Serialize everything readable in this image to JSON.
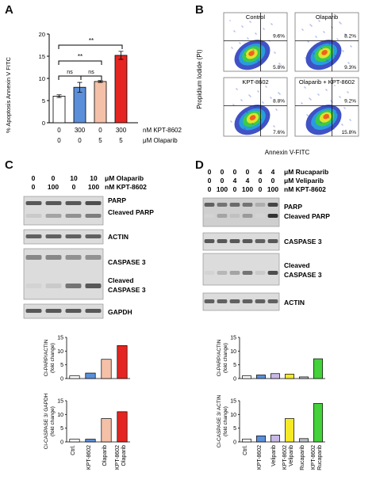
{
  "colors": {
    "ctrl": "#ffffff",
    "kpt": "#5b8fd9",
    "olap": "#f5c0a8",
    "combo": "#e52521",
    "veli": "#c7b9e6",
    "veli_combo": "#f6ea27",
    "ruca": "#b9bfc7",
    "ruca_combo": "#44d13a"
  },
  "panels": {
    "A": "A",
    "B": "B",
    "C": "C",
    "D": "D"
  },
  "A": {
    "ylabel": "% Apoptosis Annexin V FITC",
    "sig": [
      "ns",
      "**",
      "ns",
      "**"
    ],
    "row1_label": "nM KPT-8602",
    "row2_label": "μM Olaparib",
    "row1": [
      "0",
      "300",
      "0",
      "300"
    ],
    "row2": [
      "0",
      "0",
      "5",
      "5"
    ]
  },
  "B": {
    "titles": [
      "Control",
      "Olaparib",
      "KPT-8602",
      "Olaparib + KPT-8602"
    ],
    "ur": [
      "9.6%",
      "8.2%",
      "8.8%",
      "9.2%"
    ],
    "lr": [
      "5.8%",
      "9.3%",
      "7.6%",
      "15.8%"
    ],
    "ylabel": "Propidium Iodide (PI)",
    "xlabel": "Annexin V-FITC"
  },
  "C": {
    "treat_rows": [
      {
        "values": [
          "0",
          "0",
          "10",
          "10"
        ],
        "label": "μM Olaparib"
      },
      {
        "values": [
          "0",
          "100",
          "0",
          "100"
        ],
        "label": "nM KPT-8602"
      }
    ],
    "blot_labels": [
      "PARP",
      "Cleaved PARP",
      "ACTIN",
      "CASPASE 3",
      "Cleaved",
      "CASPASE 3",
      "GAPDH"
    ],
    "xcats": [
      "Ctrl.",
      "KPT-8602",
      "Olaparib",
      "KPT-8602",
      "Olaparib"
    ]
  },
  "D": {
    "treat_rows": [
      {
        "values": [
          "0",
          "0",
          "0",
          "0",
          "4",
          "4"
        ],
        "label": "μM Rucaparib"
      },
      {
        "values": [
          "0",
          "0",
          "4",
          "4",
          "0",
          "0"
        ],
        "label": "μM Veliparib"
      },
      {
        "values": [
          "0",
          "100",
          "0",
          "100",
          "0",
          "100"
        ],
        "label": "nM KPT-8602"
      }
    ],
    "blot_labels": [
      "PARP",
      "Cleaved PARP",
      "CASPASE 3",
      "Cleaved",
      "CASPASE 3",
      "ACTIN"
    ],
    "xcats": [
      "Ctrl.",
      "KPT-8602",
      "Veliparib",
      "KPT-8602",
      "Veliparib",
      "Rucaparib",
      "KPT-8602",
      "Rucaparib"
    ]
  },
  "chart_data": [
    {
      "id": "A",
      "type": "bar",
      "categories": [
        "0/0",
        "300/0",
        "0/5",
        "300/5"
      ],
      "values": [
        6,
        8,
        9.3,
        15.2
      ],
      "errors": [
        0.3,
        1.1,
        0.2,
        0.9
      ],
      "ylabel": "% Apoptosis Annexin V FITC",
      "ylim": [
        0,
        20
      ],
      "yticks": [
        "0",
        "5",
        "10",
        "15",
        "20"
      ]
    },
    {
      "id": "C-top",
      "type": "bar",
      "categories": [
        "Ctrl.",
        "KPT-8602",
        "Olaparib",
        "KPT-8602 Olaparib"
      ],
      "values": [
        1,
        2,
        7,
        12
      ],
      "ylabel": "Cl-PARP/ACTIN (fold change)",
      "ylim": [
        0,
        15
      ],
      "yticks": [
        "0",
        "5",
        "10",
        "15"
      ]
    },
    {
      "id": "C-bottom",
      "type": "bar",
      "categories": [
        "Ctrl.",
        "KPT-8602",
        "Olaparib",
        "KPT-8602 Olaparib"
      ],
      "values": [
        1,
        1,
        8.5,
        11
      ],
      "ylabel": "Cl-CASPASE 3/ GAPDH (fold change)",
      "ylim": [
        0,
        15
      ],
      "yticks": [
        "0",
        "5",
        "10",
        "15"
      ]
    },
    {
      "id": "D-top",
      "type": "bar",
      "categories": [
        "Ctrl.",
        "KPT-8602",
        "Veliparib",
        "KPT-8602 Veliparib",
        "Rucaparib",
        "KPT-8602 Rucaparib"
      ],
      "values": [
        1,
        1.3,
        1.8,
        1.6,
        0.6,
        7.2
      ],
      "ylabel": "Cl-PARP/ACTIN (fold change)",
      "ylim": [
        0,
        15
      ],
      "yticks": [
        "0",
        "5",
        "10",
        "15"
      ]
    },
    {
      "id": "D-bottom",
      "type": "bar",
      "categories": [
        "Ctrl.",
        "KPT-8602",
        "Veliparib",
        "KPT-8602 Veliparib",
        "Rucaparib",
        "KPT-8602 Rucaparib"
      ],
      "values": [
        1,
        2.2,
        2.5,
        8.5,
        1.2,
        14
      ],
      "ylabel": "Cl-CASPASE 3/ ACTIN (fold change)",
      "ylim": [
        0,
        15
      ],
      "yticks": [
        "0",
        "5",
        "10",
        "15"
      ]
    }
  ]
}
